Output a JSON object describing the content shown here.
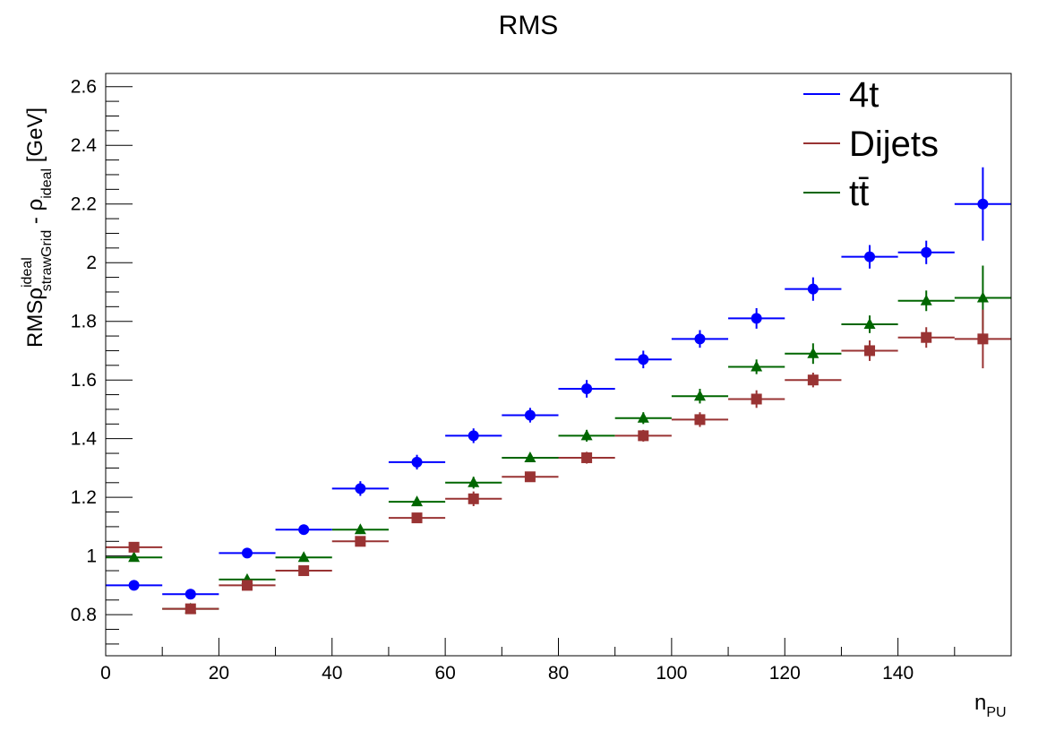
{
  "chart_data": {
    "type": "scatter",
    "title": "RMS",
    "xlabel": {
      "main": "n",
      "sub": "PU"
    },
    "ylabel": {
      "prefix": "RMS",
      "rho1": "ρ",
      "rho1_sup": "ideal",
      "rho1_sub": "strawGrid",
      "minus": " - ",
      "rho2": "ρ",
      "rho2_sub": "ideal",
      "unit": " [GeV]"
    },
    "xlim": [
      0,
      160
    ],
    "ylim": [
      0.66,
      2.645
    ],
    "x_ticks": [
      0,
      20,
      40,
      60,
      80,
      100,
      120,
      140
    ],
    "x_tick_labels": [
      "0",
      "20",
      "40",
      "60",
      "80",
      "100",
      "120",
      "140"
    ],
    "y_ticks": [
      0.8,
      1.0,
      1.2,
      1.4,
      1.6,
      1.8,
      2.0,
      2.2,
      2.4,
      2.6
    ],
    "y_tick_labels": [
      "0.8",
      "1",
      "1.2",
      "1.4",
      "1.6",
      "1.8",
      "2",
      "2.2",
      "2.4",
      "2.6"
    ],
    "legend_position": "top-right",
    "x": [
      5,
      15,
      25,
      35,
      45,
      55,
      65,
      75,
      85,
      95,
      105,
      115,
      125,
      135,
      145,
      155
    ],
    "x_half_width": 5,
    "series": [
      {
        "name": "4t",
        "color": "#0000ff",
        "marker": "circle",
        "values": [
          0.9,
          0.87,
          1.01,
          1.09,
          1.23,
          1.32,
          1.41,
          1.48,
          1.57,
          1.67,
          1.74,
          1.81,
          1.91,
          2.02,
          2.035,
          2.2
        ],
        "errors": [
          0.012,
          0.012,
          0.015,
          0.015,
          0.025,
          0.025,
          0.025,
          0.025,
          0.03,
          0.03,
          0.03,
          0.035,
          0.04,
          0.04,
          0.04,
          0.125
        ]
      },
      {
        "name": "Dijets",
        "color": "#993333",
        "marker": "square",
        "values": [
          1.03,
          0.82,
          0.9,
          0.95,
          1.05,
          1.13,
          1.195,
          1.27,
          1.335,
          1.41,
          1.465,
          1.535,
          1.6,
          1.7,
          1.745,
          1.74
        ],
        "errors": [
          0.008,
          0.008,
          0.01,
          0.01,
          0.015,
          0.015,
          0.025,
          0.015,
          0.02,
          0.02,
          0.025,
          0.03,
          0.025,
          0.035,
          0.035,
          0.1
        ]
      },
      {
        "name": "tt̄",
        "color": "#006600",
        "marker": "triangle",
        "values": [
          0.995,
          0.82,
          0.92,
          0.995,
          1.09,
          1.185,
          1.25,
          1.335,
          1.41,
          1.47,
          1.545,
          1.645,
          1.69,
          1.79,
          1.87,
          1.88
        ],
        "errors": [
          0.008,
          0.008,
          0.01,
          0.01,
          0.015,
          0.015,
          0.02,
          0.015,
          0.02,
          0.02,
          0.025,
          0.025,
          0.035,
          0.03,
          0.035,
          0.11
        ]
      }
    ]
  }
}
